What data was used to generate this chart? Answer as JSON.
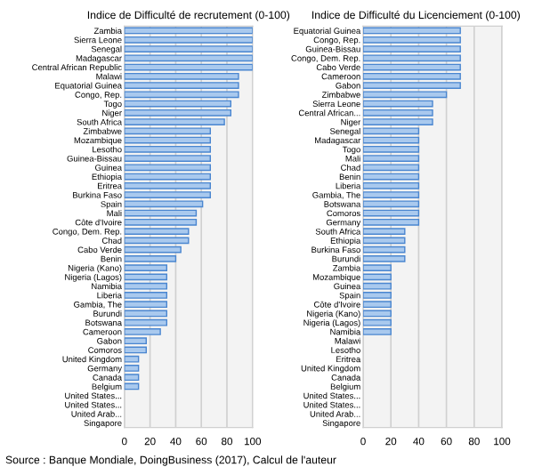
{
  "chart_data": [
    {
      "type": "bar",
      "orientation": "horizontal",
      "title": "Indice de Difficulté de recrutement (0-100)",
      "categories": [
        "Zambia",
        "Sierra Leone",
        "Senegal",
        "Madagascar",
        "Central African Republic",
        "Malawi",
        "Equatorial Guinea",
        "Congo, Rep.",
        "Togo",
        "Niger",
        "South Africa",
        "Zimbabwe",
        "Mozambique",
        "Lesotho",
        "Guinea-Bissau",
        "Guinea",
        "Ethiopia",
        "Eritrea",
        "Burkina Faso",
        "Spain",
        "Mali",
        "Côte d'Ivoire",
        "Congo, Dem. Rep.",
        "Chad",
        "Cabo Verde",
        "Benin",
        "Nigeria (Kano)",
        "Nigeria (Lagos)",
        "Namibia",
        "Liberia",
        "Gambia, The",
        "Burundi",
        "Botswana",
        "Cameroon",
        "Gabon",
        "Comoros",
        "United Kingdom",
        "Germany",
        "Canada",
        "Belgium",
        "United States...",
        "United States...",
        "United Arab...",
        "Singapore"
      ],
      "values": [
        100,
        100,
        100,
        100,
        100,
        89,
        89,
        89,
        83,
        83,
        78,
        67,
        67,
        67,
        67,
        67,
        67,
        67,
        67,
        61,
        56,
        56,
        50,
        50,
        44,
        40,
        33,
        33,
        33,
        33,
        33,
        33,
        33,
        28,
        17,
        17,
        11,
        11,
        11,
        11,
        0,
        0,
        0,
        0
      ],
      "color": "#a9c9ee",
      "xlim": [
        0,
        100
      ],
      "xticks": [
        0,
        20,
        40,
        60,
        80,
        100
      ],
      "grid": "x",
      "annotations": [
        "Source : Banque Mondiale, DoingBusiness (2017), Calcul de l'auteur"
      ]
    },
    {
      "type": "bar",
      "orientation": "horizontal",
      "title": "Indice de Difficulté du Licenciement (0-100)",
      "categories": [
        "Equatorial Guinea",
        "Congo, Rep.",
        "Guinea-Bissau",
        "Congo, Dem. Rep.",
        "Cabo Verde",
        "Cameroon",
        "Gabon",
        "Zimbabwe",
        "Sierra Leone",
        "Central African...",
        "Niger",
        "Senegal",
        "Madagascar",
        "Togo",
        "Mali",
        "Chad",
        "Benin",
        "Liberia",
        "Gambia, The",
        "Botswana",
        "Comoros",
        "Germany",
        "South Africa",
        "Ethiopia",
        "Burkina Faso",
        "Burundi",
        "Zambia",
        "Mozambique",
        "Guinea",
        "Spain",
        "Côte d'Ivoire",
        "Nigeria (Kano)",
        "Nigeria (Lagos)",
        "Namibia",
        "Malawi",
        "Lesotho",
        "Eritrea",
        "United Kingdom",
        "Canada",
        "Belgium",
        "United States...",
        "United States...",
        "United Arab...",
        "Singapore"
      ],
      "values": [
        70,
        70,
        70,
        70,
        70,
        70,
        70,
        60,
        50,
        50,
        50,
        40,
        40,
        40,
        40,
        40,
        40,
        40,
        40,
        40,
        40,
        40,
        30,
        30,
        30,
        30,
        20,
        20,
        20,
        20,
        20,
        20,
        20,
        20,
        0,
        0,
        0,
        0,
        0,
        0,
        0,
        0,
        0,
        0
      ],
      "color": "#a9c9ee",
      "xlim": [
        0,
        100
      ],
      "xticks": [
        0,
        20,
        40,
        60,
        80,
        100
      ],
      "grid": "x"
    }
  ]
}
